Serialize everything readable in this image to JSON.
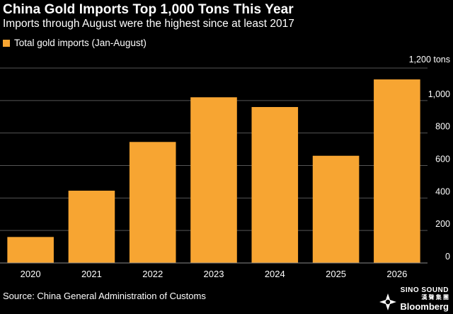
{
  "header": {
    "title": "China Gold Imports Top 1,000 Tons This Year",
    "subtitle": "Imports through August were the highest since at least 2017"
  },
  "legend": {
    "label": "Total gold imports (Jan-August)",
    "color": "#f7a532"
  },
  "footer": {
    "source": "Source: China General Administration of Customs",
    "logo_line1": "SINO SOUND",
    "logo_line2": "漢 聲 集 團",
    "logo_line3": "Bloomberg"
  },
  "chart_data": {
    "type": "bar",
    "categories": [
      "2020",
      "2021",
      "2022",
      "2023",
      "2024",
      "2025",
      "2026"
    ],
    "series": [
      {
        "name": "Total gold imports (Jan-August)",
        "values": [
          160,
          445,
          745,
          1020,
          960,
          660,
          1130
        ]
      }
    ],
    "ylim": [
      0,
      1200
    ],
    "yticks": [
      0,
      200,
      400,
      600,
      800,
      1000
    ],
    "ytick_labels": [
      "0",
      "200",
      "400",
      "600",
      "800",
      "1,000"
    ],
    "top_label": "1,200 tons",
    "grid": true,
    "y_axis_position": "right",
    "bar_color": "#f7a532",
    "grid_color": "#555555"
  }
}
